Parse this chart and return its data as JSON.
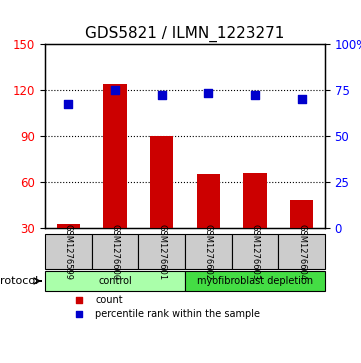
{
  "title": "GDS5821 / ILMN_1223271",
  "samples": [
    "GSM1276599",
    "GSM1276600",
    "GSM1276601",
    "GSM1276602",
    "GSM1276603",
    "GSM1276604"
  ],
  "counts": [
    33,
    124,
    90,
    65,
    66,
    48
  ],
  "percentile_ranks": [
    67,
    75,
    72,
    73,
    72,
    70
  ],
  "ylim_left": [
    30,
    150
  ],
  "ylim_right": [
    0,
    100
  ],
  "yticks_left": [
    30,
    60,
    90,
    120,
    150
  ],
  "yticks_right": [
    0,
    25,
    50,
    75,
    100
  ],
  "ytick_labels_right": [
    "0",
    "25",
    "50",
    "75",
    "100%"
  ],
  "bar_color": "#cc0000",
  "dot_color": "#0000cc",
  "grid_color": "#000000",
  "protocol_groups": [
    {
      "label": "control",
      "indices": [
        0,
        1,
        2
      ],
      "color": "#aaffaa"
    },
    {
      "label": "myofibroblast depletion",
      "indices": [
        3,
        4,
        5
      ],
      "color": "#44dd44"
    }
  ],
  "legend_items": [
    {
      "label": "count",
      "color": "#cc0000",
      "marker": "s"
    },
    {
      "label": "percentile rank within the sample",
      "color": "#0000cc",
      "marker": "s"
    }
  ],
  "protocol_label": "protocol",
  "sample_box_color": "#cccccc",
  "title_fontsize": 11,
  "axis_label_fontsize": 9,
  "tick_fontsize": 8.5
}
